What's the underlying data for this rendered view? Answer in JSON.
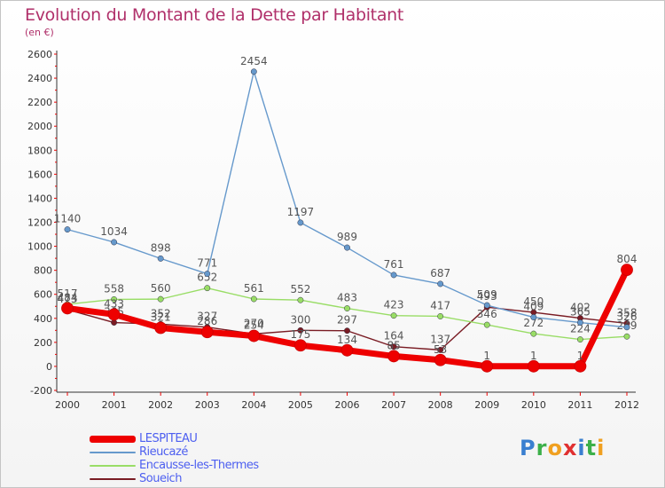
{
  "title": "Evolution du Montant de la Dette par Habitant",
  "unit": "(en €)",
  "logo_text": "Proxiti",
  "chart_data": {
    "type": "line",
    "x": [
      "2000",
      "2001",
      "2002",
      "2003",
      "2004",
      "2005",
      "2006",
      "2007",
      "2008",
      "2009",
      "2010",
      "2011",
      "2012"
    ],
    "ylim": [
      -200,
      2600
    ],
    "yticks": [
      -200,
      0,
      200,
      400,
      600,
      800,
      1000,
      1200,
      1400,
      1600,
      1800,
      2000,
      2200,
      2400,
      2600
    ],
    "grid": false,
    "legend_position": "bottom-left",
    "series": [
      {
        "name": "Soueich",
        "color": "#7a1c24",
        "values": [
          473,
          365,
          352,
          327,
          270,
          300,
          297,
          164,
          137,
          493,
          450,
          402,
          358
        ]
      },
      {
        "name": "Encausse-les-Thermes",
        "color": "#99dd66",
        "values": [
          517,
          558,
          560,
          652,
          561,
          552,
          483,
          423,
          417,
          346,
          272,
          224,
          249
        ]
      },
      {
        "name": "Rieucazé",
        "color": "#6699cc",
        "values": [
          1140,
          1034,
          898,
          771,
          2454,
          1197,
          989,
          761,
          687,
          509,
          409,
          365,
          326
        ]
      },
      {
        "name": "LESPITEAU",
        "color": "#ee0000",
        "values": [
          484,
          433,
          321,
          286,
          254,
          175,
          134,
          85,
          53,
          1,
          1,
          1,
          804
        ]
      }
    ]
  }
}
